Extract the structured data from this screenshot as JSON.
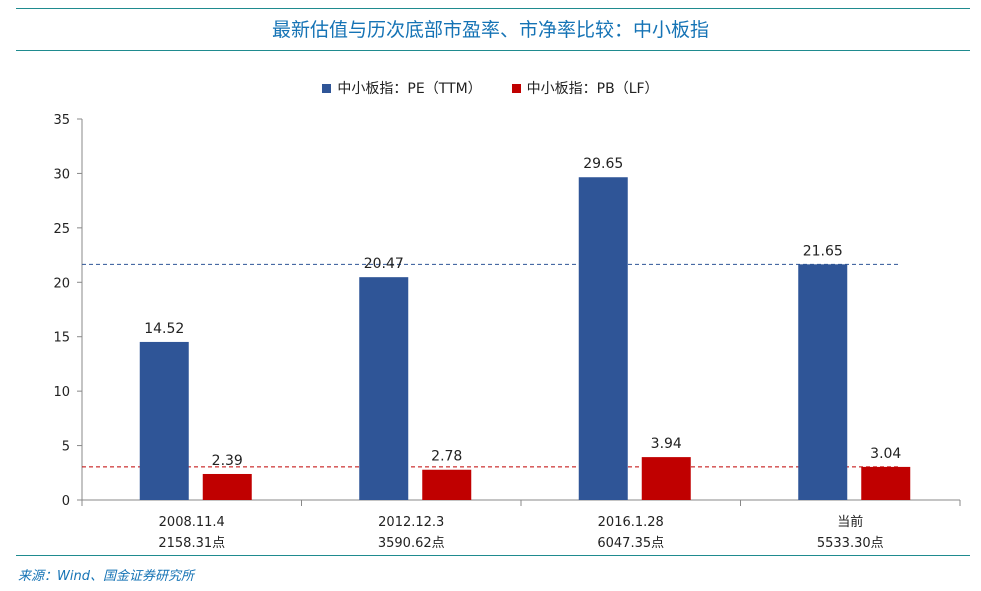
{
  "header": {
    "title": "最新估值与历次底部市盈率、市净率比较：中小板指"
  },
  "footer": {
    "source": "来源：Wind、国金证券研究所"
  },
  "colors": {
    "pe": "#2f5597",
    "pb": "#c00000",
    "rule": "#1f8b8f",
    "title": "#1573b5"
  },
  "chart_data": {
    "type": "bar",
    "title": "最新估值与历次底部市盈率、市净率比较：中小板指",
    "categories": [
      {
        "date": "2008.11.4",
        "index": "2158.31点"
      },
      {
        "date": "2012.12.3",
        "index": "3590.62点"
      },
      {
        "date": "2016.1.28",
        "index": "6047.35点"
      },
      {
        "date": "当前",
        "index": "5533.30点"
      }
    ],
    "series": [
      {
        "name": "中小板指：PE（TTM）",
        "values": [
          14.52,
          20.47,
          29.65,
          21.65
        ],
        "color": "#2f5597"
      },
      {
        "name": "中小板指：PB（LF）",
        "values": [
          2.39,
          2.78,
          3.94,
          3.04
        ],
        "color": "#c00000"
      }
    ],
    "reference_lines": [
      {
        "series": "中小板指：PE（TTM）",
        "value": 21.65,
        "style": "dashed"
      },
      {
        "series": "中小板指：PB（LF）",
        "value": 3.04,
        "style": "dashed"
      }
    ],
    "yticks": [
      "0",
      "5",
      "10",
      "15",
      "20",
      "25",
      "30",
      "35"
    ],
    "ylim": [
      0,
      35
    ],
    "xlabel": "",
    "ylabel": "",
    "legend_position": "top-center",
    "grid": false
  }
}
